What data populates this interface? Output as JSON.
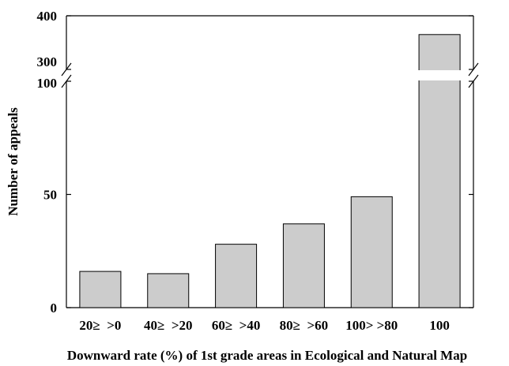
{
  "chart_data": {
    "type": "bar",
    "title": "",
    "xlabel": "Downward rate (%) of 1st grade areas in Ecological and Natural Map",
    "ylabel": "Number of appeals",
    "categories": [
      "20≥  >0",
      "40≥  >20",
      "60≥  >40",
      "80≥  >60",
      "100> >80",
      "100"
    ],
    "values": [
      16,
      15,
      28,
      37,
      49,
      365
    ],
    "y_axis": {
      "broken": true,
      "lower_segment": {
        "range": [
          0,
          100
        ],
        "ticks": [
          0,
          50,
          100
        ]
      },
      "upper_segment": {
        "range": [
          300,
          400
        ],
        "ticks": [
          300,
          400
        ]
      }
    },
    "tick_labels": [
      "0",
      "50",
      "100",
      "300",
      "400"
    ],
    "grid": false,
    "legend": "none",
    "colors": {
      "bar_fill": "#cccccc",
      "bar_stroke": "#000000",
      "axis": "#000000"
    }
  }
}
